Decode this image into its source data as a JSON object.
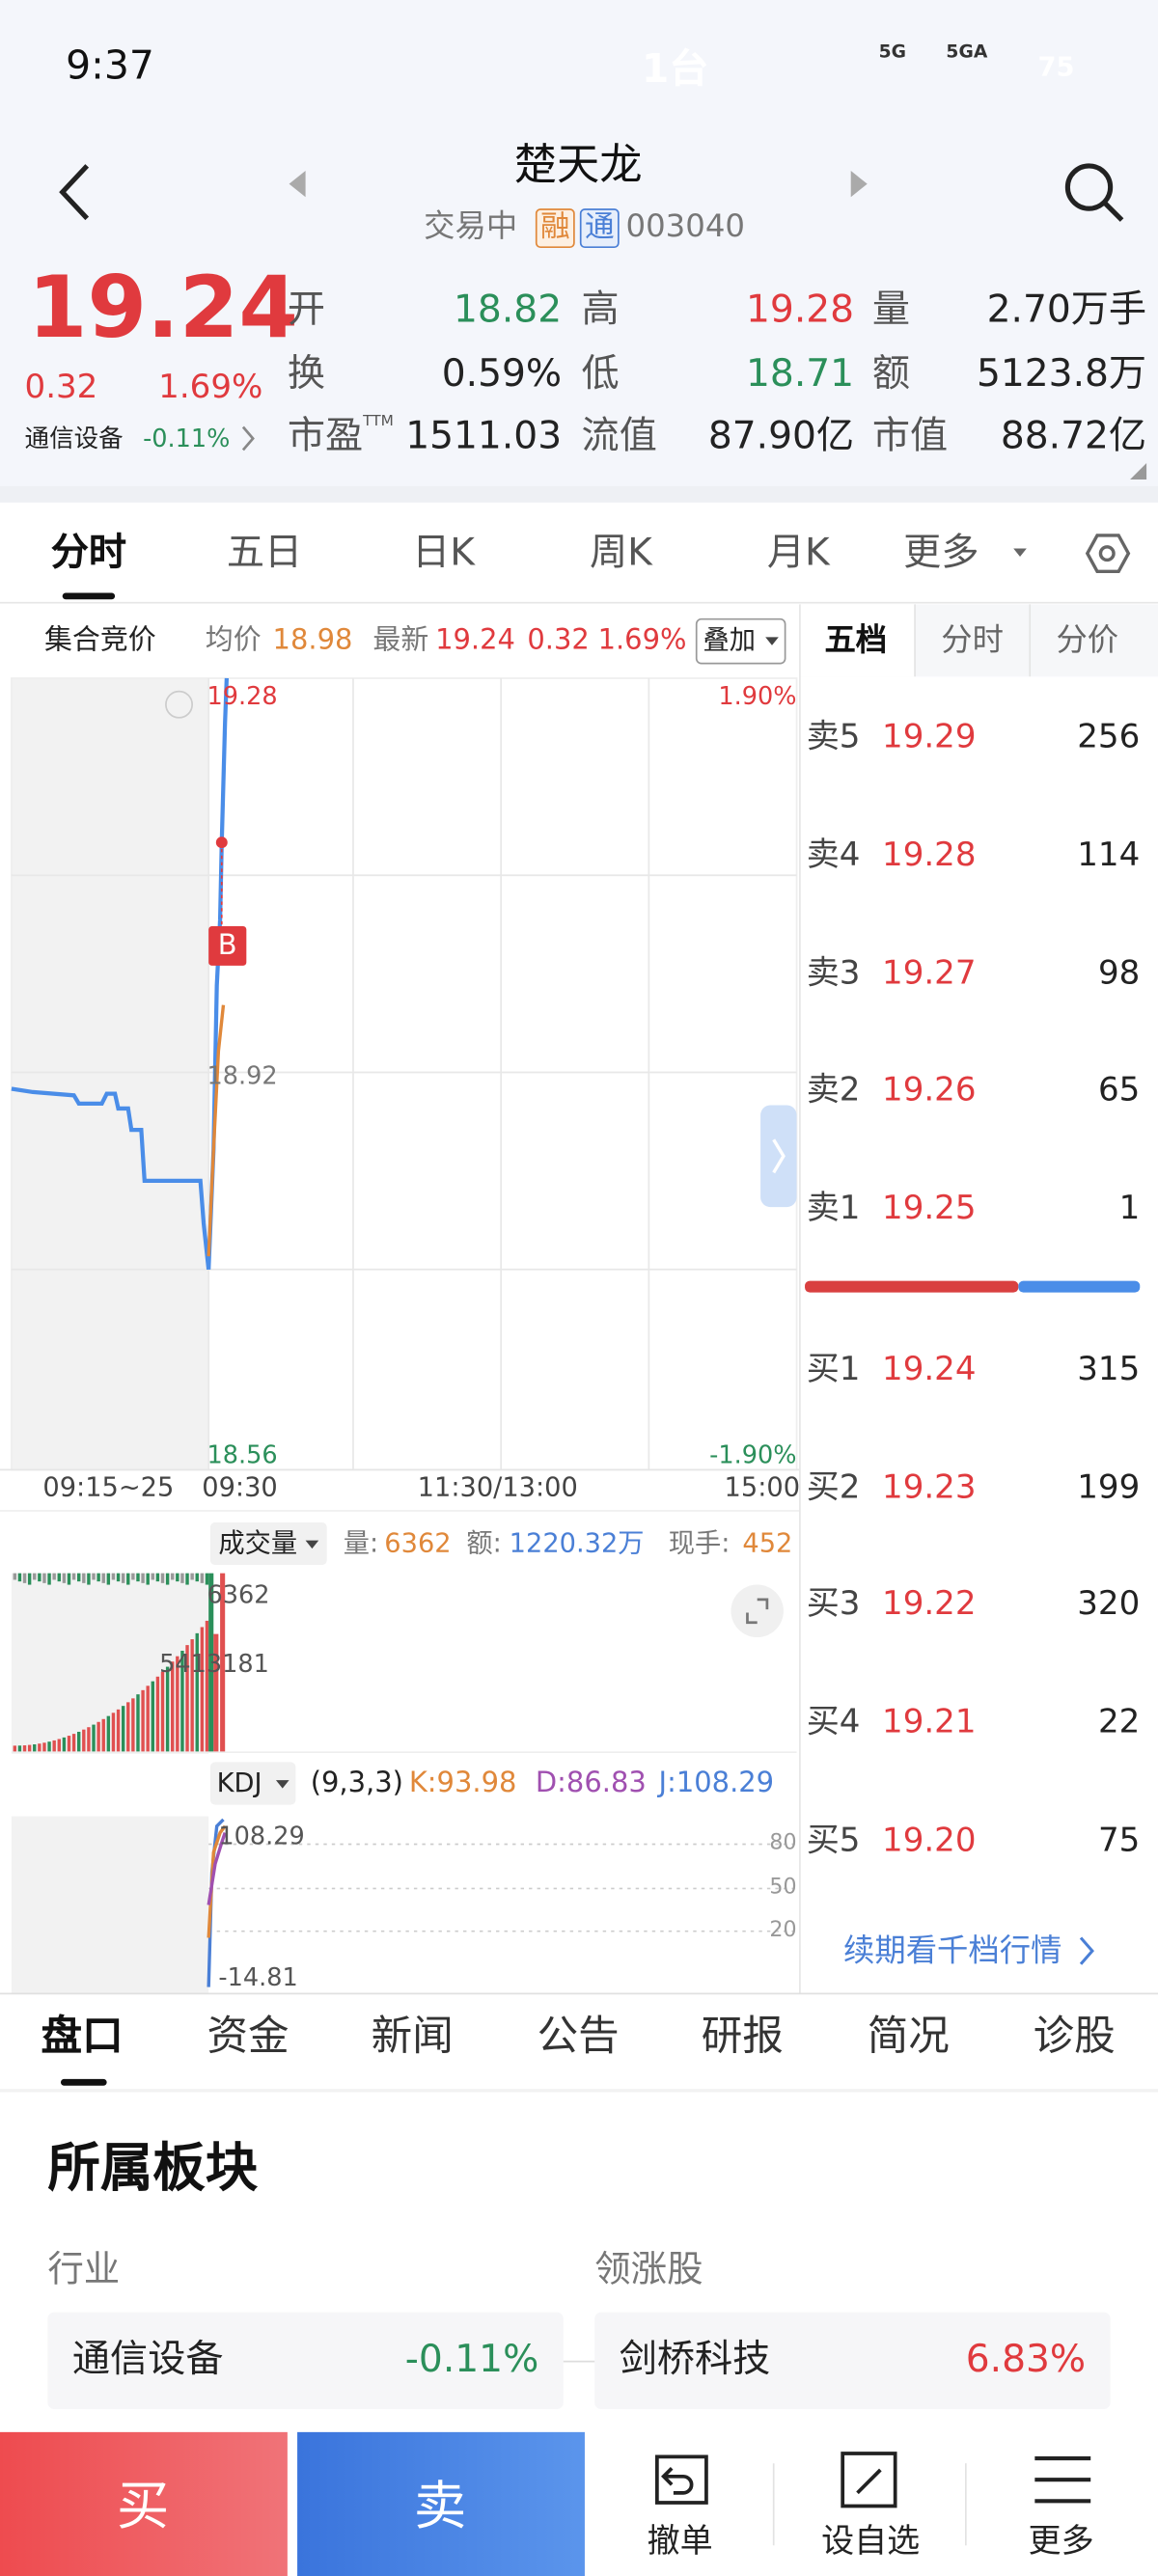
{
  "status_bar": {
    "time": "9:37",
    "island_text": "1台",
    "network": [
      "5G",
      "5GA"
    ],
    "battery": "75"
  },
  "header": {
    "title": "楚天龙",
    "state": "交易中",
    "tags": [
      "融",
      "通"
    ],
    "code": "003040"
  },
  "quote": {
    "price": "19.24",
    "change": "0.32",
    "change_pct": "1.69%",
    "sector": "通信设备",
    "sector_pct": "-0.11%",
    "rows": [
      [
        {
          "label": "开",
          "value": "18.82"
        },
        {
          "label": "高",
          "value": "19.28"
        },
        {
          "label": "量",
          "value": "2.70万手"
        }
      ],
      [
        {
          "label": "换",
          "value": "0.59%"
        },
        {
          "label": "低",
          "value": "18.71"
        },
        {
          "label": "额",
          "value": "5123.8万"
        }
      ],
      [
        {
          "label": "市盈",
          "sup": "TTM",
          "value": "1511.03"
        },
        {
          "label": "流值",
          "value": "87.90亿"
        },
        {
          "label": "市值",
          "value": "88.72亿"
        }
      ]
    ]
  },
  "chart_tabs": [
    "分时",
    "五日",
    "日K",
    "周K",
    "月K",
    "更多"
  ],
  "intraday": {
    "auction": "集合竞价",
    "avg_label": "均价",
    "avg": "18.98",
    "last_label": "最新",
    "last": "19.24",
    "change": "0.32",
    "change_pct": "1.69%",
    "overlay": "叠加",
    "y_labels": {
      "top": "19.28",
      "top_pct": "1.90%",
      "mid": "18.92",
      "bottom": "18.56",
      "bottom_pct": "-1.90%"
    },
    "x_labels": [
      "09:15~25",
      "09:30",
      "11:30/13:00",
      "15:00"
    ],
    "marker": "B"
  },
  "volume": {
    "title": "成交量",
    "vol_label": "量:",
    "vol": "6362",
    "amt_label": "额:",
    "amt": "1220.32万",
    "hand_label": "现手:",
    "hand": "452",
    "axis_top": "6362",
    "axis_mid": "5413181"
  },
  "kdj": {
    "title": "KDJ",
    "params": "(9,3,3)",
    "k": "K:93.98",
    "d": "D:86.83",
    "j": "J:108.29",
    "axis_top": "108.29",
    "axis_bottom": "-14.81",
    "levels": [
      "80",
      "50",
      "20"
    ]
  },
  "order_book": {
    "tabs": [
      "五档",
      "分时",
      "分价"
    ],
    "sells": [
      [
        "卖5",
        "19.29",
        "256"
      ],
      [
        "卖4",
        "19.28",
        "114"
      ],
      [
        "卖3",
        "19.27",
        "98"
      ],
      [
        "卖2",
        "19.26",
        "65"
      ],
      [
        "卖1",
        "19.25",
        "1"
      ]
    ],
    "buys": [
      [
        "买1",
        "19.24",
        "315"
      ],
      [
        "买2",
        "19.23",
        "199"
      ],
      [
        "买3",
        "19.22",
        "320"
      ],
      [
        "买4",
        "19.21",
        "22"
      ],
      [
        "买5",
        "19.20",
        "75"
      ]
    ],
    "link": "续期看千档行情"
  },
  "bottom_tabs": [
    "盘口",
    "资金",
    "新闻",
    "公告",
    "研报",
    "简况",
    "诊股"
  ],
  "sector_section": {
    "title": "所属板块",
    "industry_label": "行业",
    "leader_label": "领涨股",
    "industry": {
      "name": "通信设备",
      "pct": "-0.11%"
    },
    "leader": {
      "name": "剑桥科技",
      "pct": "6.83%"
    }
  },
  "action_bar": {
    "buy": "买",
    "sell": "卖",
    "cancel": "撤单",
    "watch": "设自选",
    "more": "更多"
  }
}
